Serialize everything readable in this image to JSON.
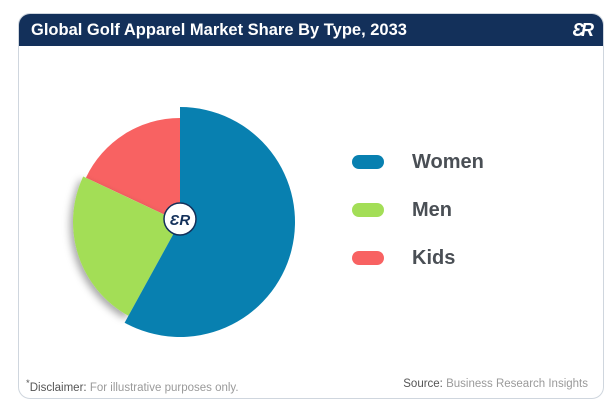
{
  "header": {
    "title": "Global Golf Apparel Market Share By Type, 2033",
    "logo": "BR"
  },
  "chart_data": {
    "type": "pie",
    "title": "Global Golf Apparel Market Share By Type, 2033",
    "categories": [
      "Women",
      "Men",
      "Kids"
    ],
    "values": [
      58,
      24,
      18
    ],
    "colors": [
      "#0880b0",
      "#a3de57",
      "#f86262"
    ],
    "legend_placement": "right"
  },
  "footer": {
    "disclaimer_label": "Disclaimer:",
    "disclaimer_text": "For illustrative purposes only.",
    "source_label": "Source:",
    "source_text": "Business Research Insights"
  }
}
